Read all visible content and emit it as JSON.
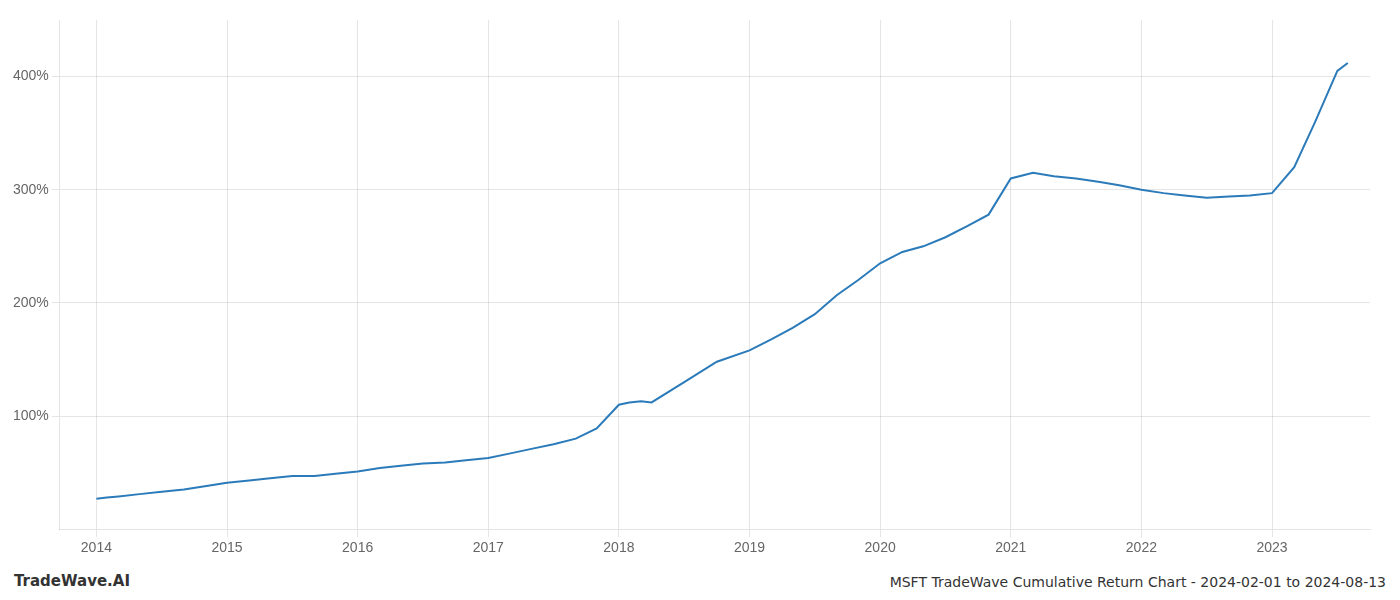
{
  "chart_data": {
    "type": "line",
    "title": "MSFT TradeWave Cumulative Return Chart - 2024-02-01 to 2024-08-13",
    "annotations": [
      "TradeWave.AI"
    ],
    "color": "#2b7bba",
    "x": [
      2014.0,
      2014.08,
      2014.17,
      2014.33,
      2014.5,
      2014.67,
      2014.83,
      2015.0,
      2015.17,
      2015.33,
      2015.5,
      2015.67,
      2015.83,
      2016.0,
      2016.17,
      2016.33,
      2016.5,
      2016.67,
      2016.83,
      2017.0,
      2017.17,
      2017.33,
      2017.5,
      2017.67,
      2017.83,
      2018.0,
      2018.08,
      2018.17,
      2018.25,
      2018.5,
      2018.75,
      2019.0,
      2019.17,
      2019.33,
      2019.5,
      2019.67,
      2019.83,
      2020.0,
      2020.17,
      2020.33,
      2020.5,
      2020.67,
      2020.83,
      2021.0,
      2021.17,
      2021.33,
      2021.5,
      2021.67,
      2021.83,
      2022.0,
      2022.17,
      2022.33,
      2022.5,
      2022.67,
      2022.83,
      2023.0,
      2023.17,
      2023.33,
      2023.5,
      2023.58
    ],
    "values": [
      27,
      28,
      29,
      31,
      33,
      35,
      38,
      41,
      43,
      45,
      47,
      47,
      49,
      51,
      54,
      56,
      58,
      59,
      61,
      63,
      67,
      71,
      75,
      80,
      89,
      110,
      112,
      113,
      112,
      130,
      148,
      158,
      168,
      178,
      190,
      207,
      220,
      235,
      245,
      250,
      258,
      268,
      278,
      310,
      315,
      312,
      310,
      307,
      304,
      300,
      297,
      295,
      293,
      294,
      295,
      297,
      320,
      360,
      405,
      412
    ],
    "xlim": [
      2013.72,
      2023.75
    ],
    "xticks": [
      2014,
      2015,
      2016,
      2017,
      2018,
      2019,
      2020,
      2021,
      2022,
      2023
    ],
    "ylim": [
      0,
      450
    ],
    "yticks": [
      {
        "value": 100,
        "label": "100%"
      },
      {
        "value": 200,
        "label": "200%"
      },
      {
        "value": 300,
        "label": "300%"
      },
      {
        "value": 400,
        "label": "400%"
      }
    ],
    "grid": true
  }
}
